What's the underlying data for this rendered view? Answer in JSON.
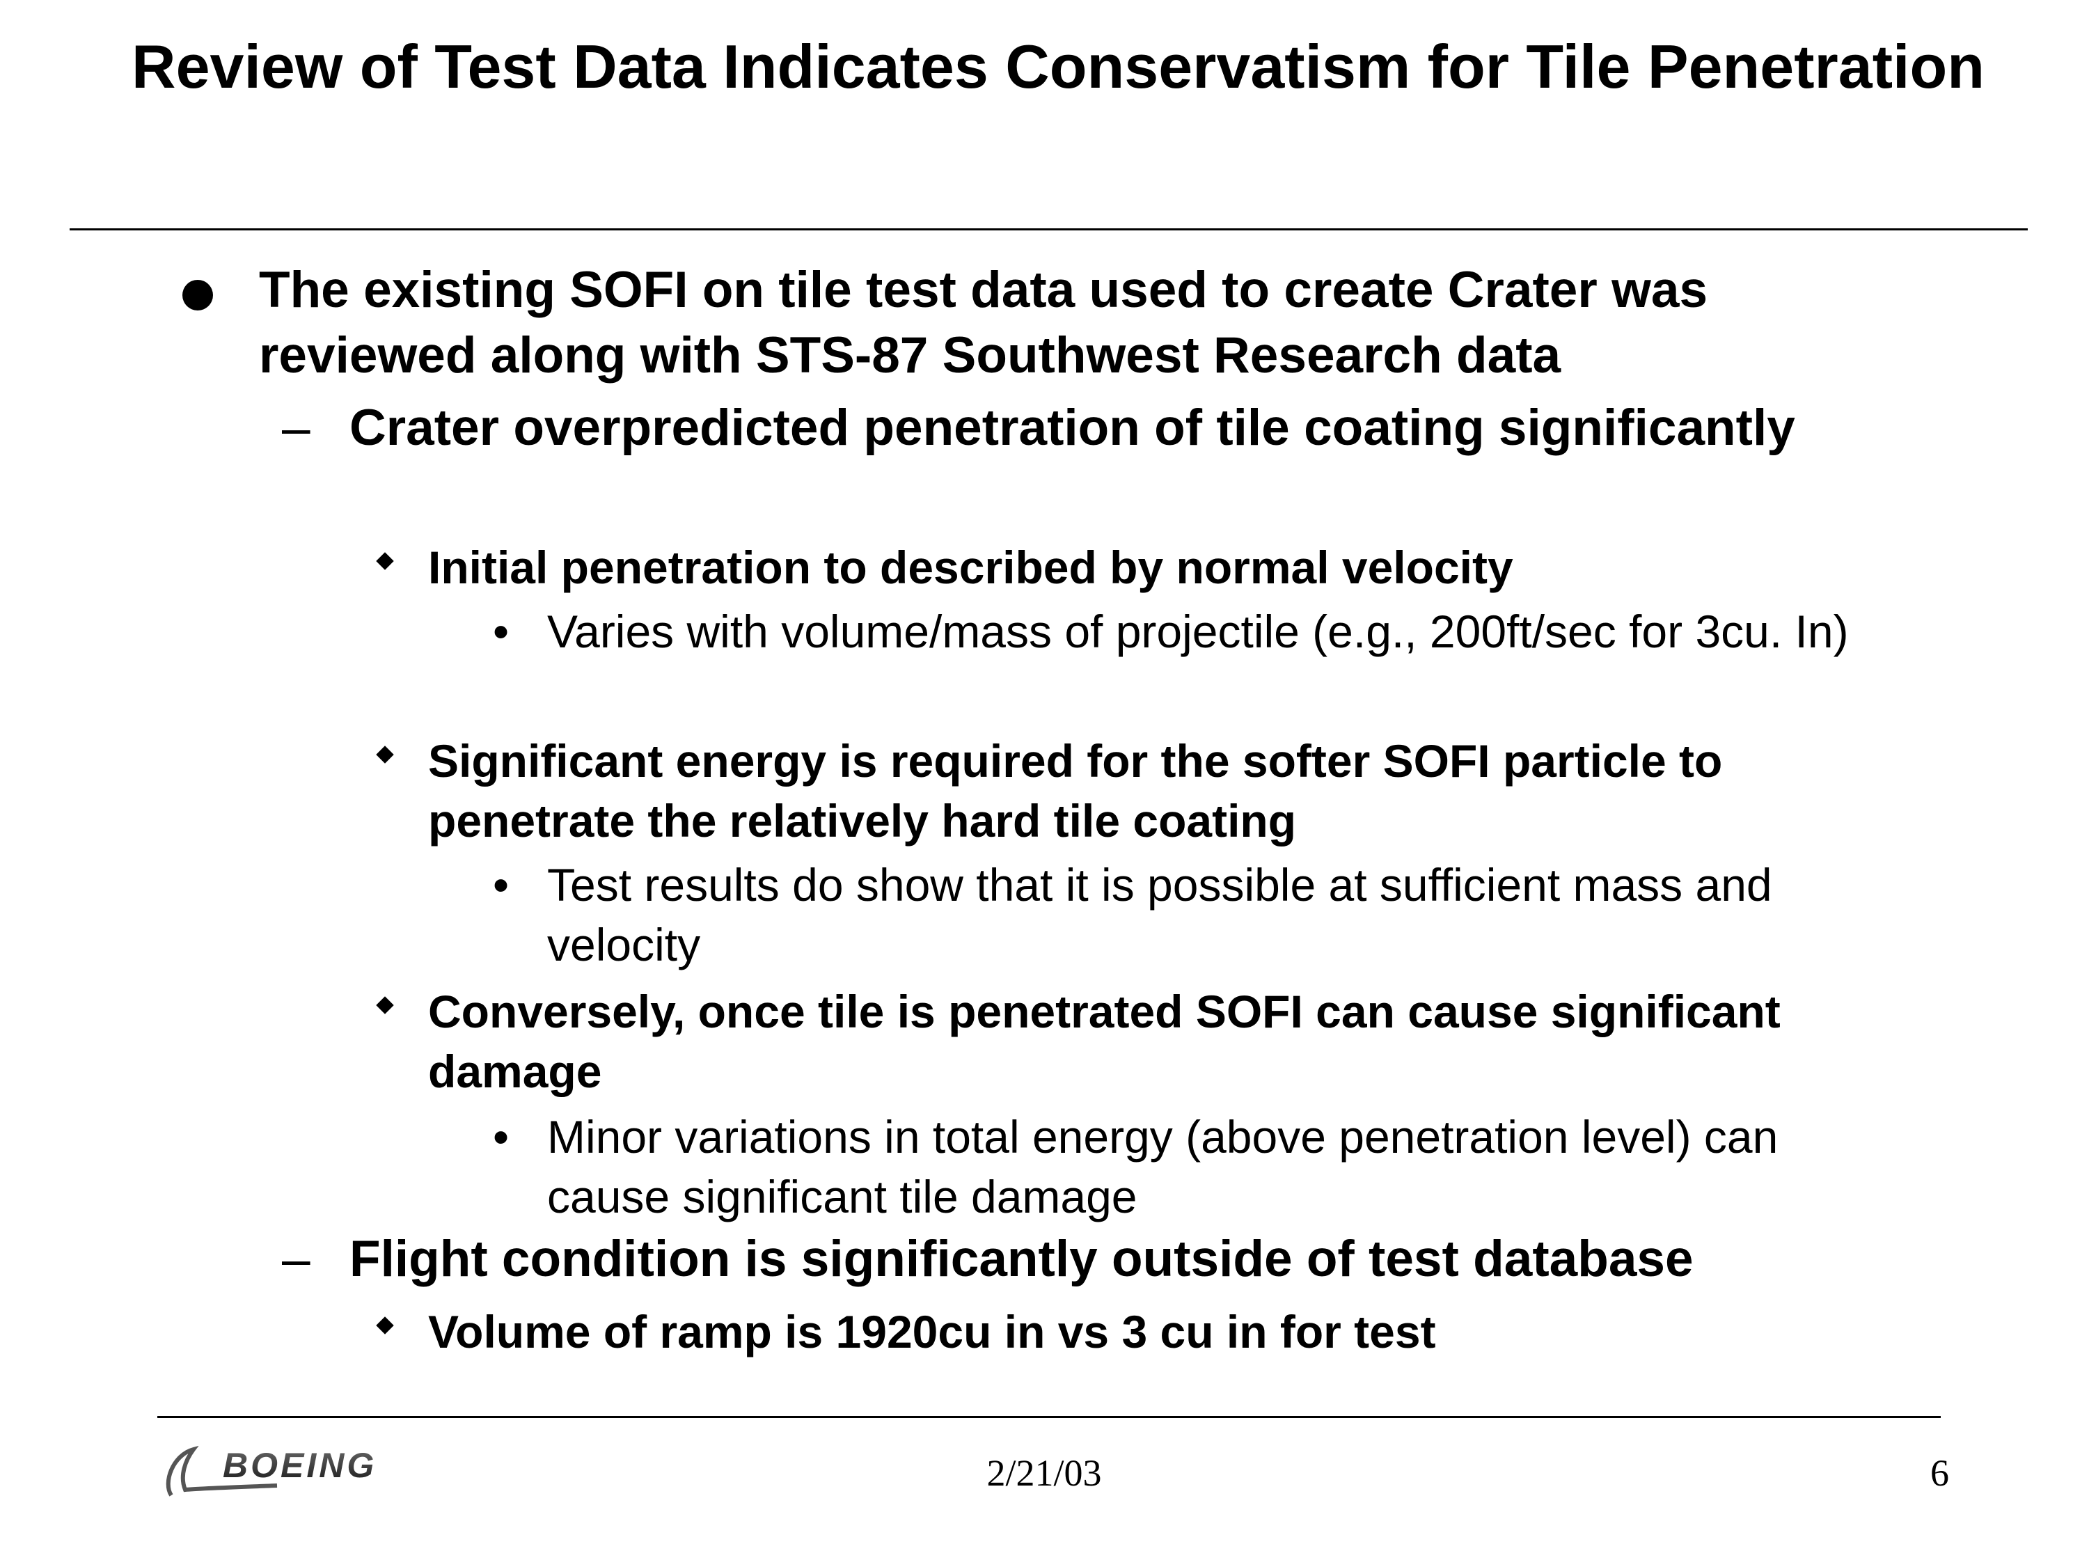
{
  "slide": {
    "title": "Review of Test Data Indicates Conservatism for Tile Penetration",
    "bullets": [
      {
        "text": "The existing SOFI on tile test data used to create Crater was reviewed along with STS-87 Southwest Research data"
      },
      {
        "marker": "–",
        "text": "Crater overpredicted penetration of tile coating significantly"
      },
      {
        "text": "Initial penetration to described by normal velocity"
      },
      {
        "marker": "•",
        "text": "Varies with volume/mass of projectile (e.g., 200ft/sec for 3cu. In)"
      },
      {
        "text": "Significant energy is required for the softer SOFI particle to penetrate the relatively hard tile coating"
      },
      {
        "marker": "•",
        "text": "Test results do show that it is possible at sufficient mass and velocity"
      },
      {
        "text": "Conversely, once tile is penetrated SOFI can cause significant damage"
      },
      {
        "marker": "•",
        "text": "Minor variations in total energy (above penetration level) can cause significant tile damage"
      },
      {
        "marker": "–",
        "text": "Flight condition is significantly outside of test database"
      },
      {
        "text": "Volume of ramp is 1920cu in vs 3 cu in for test"
      }
    ]
  },
  "footer": {
    "logo_text": "BOEING",
    "date": "2/21/03",
    "page_number": "6"
  }
}
